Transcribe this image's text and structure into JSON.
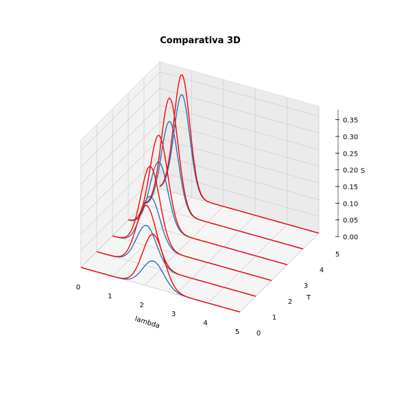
{
  "chart_data": {
    "type": "line",
    "title": "Comparativa 3D",
    "xlabel": "lambda",
    "ylabel": "T",
    "zlabel": "S",
    "xlim": [
      0,
      5
    ],
    "ylim": [
      0,
      5
    ],
    "zlim": [
      0,
      0.38
    ],
    "x_ticks": [
      "0",
      "1",
      "2",
      "3",
      "4",
      "5"
    ],
    "y_ticks": [
      "0",
      "1",
      "2",
      "3",
      "4",
      "5"
    ],
    "z_ticks": [
      "0.00",
      "0.05",
      "0.10",
      "0.15",
      "0.20",
      "0.25",
      "0.30",
      "0.35"
    ],
    "grid": true,
    "series": [
      {
        "color": "#1f77b4",
        "T_values": [
          0,
          1,
          2,
          3,
          4,
          5
        ],
        "peaks": [
          0.08,
          0.12,
          0.15,
          0.2,
          0.27,
          0.3
        ]
      },
      {
        "color": "#ff0000",
        "T_values": [
          0,
          1,
          2,
          3,
          4,
          5
        ],
        "peaks": [
          0.16,
          0.18,
          0.24,
          0.28,
          0.34,
          0.36
        ]
      }
    ]
  }
}
